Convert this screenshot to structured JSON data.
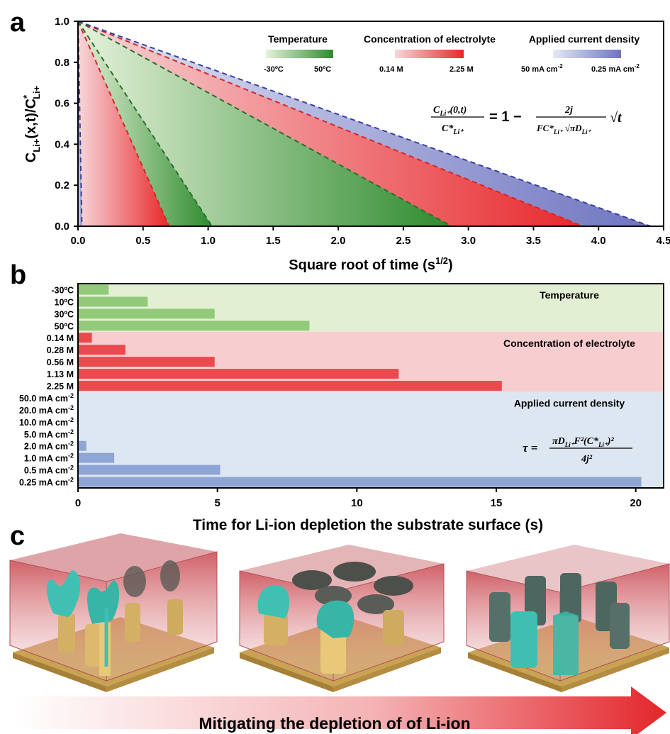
{
  "panels": {
    "a": {
      "letter": "a"
    },
    "b": {
      "letter": "b"
    },
    "c": {
      "letter": "c"
    }
  },
  "legend": {
    "temperature": {
      "title": "Temperature",
      "low": "-30ºC",
      "high": "50ºC"
    },
    "concentration": {
      "title": "Concentration of electrolyte",
      "low": "0.14 M",
      "high": "2.25 M"
    },
    "current": {
      "title": "Applied current density",
      "low_num": "50 mA cm",
      "low_sup": "-2",
      "high_num": "0.25 mA cm",
      "high_sup": "-2"
    }
  },
  "equation_a": {
    "lhs_num": "C",
    "lhs_num_sub": "Li⁺",
    "lhs_num_arg": "(0,t)",
    "lhs_den": "C*",
    "lhs_den_sub": "Li⁺",
    "eq": "= 1 −",
    "rhs_num": "2j",
    "rhs_den": "FC*",
    "rhs_den_sub": "Li⁺",
    "rhs_den_sqrt": "πD",
    "rhs_den_sqrt_sub": "Li⁺",
    "tail": "√t"
  },
  "equation_b": {
    "lhs": "τ =",
    "num": "πD",
    "num_sub": "Li⁺",
    "num_rest": "F²(C*",
    "num_rest_sub": "Li⁺",
    "num_close": ")²",
    "den": "4j²"
  },
  "panel_c": {
    "arrow_caption": "Mitigating the depletion of of Li-ion"
  },
  "colors": {
    "temperature": "#2e8b2e",
    "temperature_light": "#e2f0d4",
    "concentration": "#e8282b",
    "concentration_light": "#f5c6c8",
    "current": "#7479c2",
    "current_light": "#dbe3f0",
    "temperature_band": "#e3efd3",
    "concentration_band": "#f8cdd0",
    "current_band": "#dde7f1"
  },
  "chart_data": [
    {
      "type": "area",
      "xlabel": "Square root of time (s1/2)",
      "xlabel_main": "Square root of time (s",
      "xlabel_sup": "1/2",
      "xlabel_close": ")",
      "ylabel": "CLi+(x,t)/C*Li+",
      "xlim": [
        0.0,
        4.5
      ],
      "ylim": [
        0.0,
        1.0
      ],
      "xticks": [
        "0.0",
        "0.5",
        "1.0",
        "1.5",
        "2.0",
        "2.5",
        "3.0",
        "3.5",
        "4.0",
        "4.5"
      ],
      "yticks": [
        "0.0",
        "0.2",
        "0.4",
        "0.6",
        "0.8",
        "1.0"
      ],
      "series": [
        {
          "group": "current",
          "start": [
            0.0,
            1.0
          ],
          "end": [
            0.03,
            0.0
          ]
        },
        {
          "group": "concentration",
          "start": [
            0.0,
            1.0
          ],
          "end": [
            0.7,
            0.0
          ]
        },
        {
          "group": "temperature",
          "start": [
            0.0,
            1.0
          ],
          "end": [
            1.03,
            0.0
          ]
        },
        {
          "group": "temperature",
          "start": [
            0.0,
            1.0
          ],
          "end": [
            2.87,
            0.0
          ]
        },
        {
          "group": "concentration",
          "start": [
            0.0,
            1.0
          ],
          "end": [
            3.88,
            0.0
          ]
        },
        {
          "group": "current",
          "start": [
            0.0,
            1.0
          ],
          "end": [
            4.4,
            0.0
          ]
        }
      ]
    },
    {
      "type": "bar",
      "orientation": "horizontal",
      "xlabel": "Time for Li-ion depletion the substrate surface (s)",
      "xlim": [
        0,
        21
      ],
      "xticks": [
        "0",
        "5",
        "10",
        "15",
        "20"
      ],
      "groups": [
        {
          "name": "Temperature",
          "key": "temperature",
          "categories": [
            "-30ºC",
            "10ºC",
            "30ºC",
            "50ºC"
          ],
          "values": [
            1.1,
            2.5,
            4.9,
            8.3
          ]
        },
        {
          "name": "Concentration of electrolyte",
          "key": "concentration",
          "categories": [
            "0.14 M",
            "0.28 M",
            "0.56 M",
            "1.13 M",
            "2.25 M"
          ],
          "values": [
            0.5,
            1.7,
            4.9,
            11.5,
            15.2
          ]
        },
        {
          "name": "Applied current density",
          "key": "current",
          "categories": [
            [
              "50.0 mA cm",
              "-2"
            ],
            [
              "20.0 mA cm",
              "-2"
            ],
            [
              "10.0 mA cm",
              "-2"
            ],
            [
              "5.0 mA cm",
              "-2"
            ],
            [
              "2.0 mA cm",
              "-2"
            ],
            [
              "1.0 mA cm",
              "-2"
            ],
            [
              "0.5 mA cm",
              "-2"
            ],
            [
              "0.25 mA cm",
              "-2"
            ]
          ],
          "values": [
            0.0,
            0.0,
            0.0,
            0.0,
            0.3,
            1.3,
            5.1,
            20.2
          ]
        }
      ]
    }
  ]
}
